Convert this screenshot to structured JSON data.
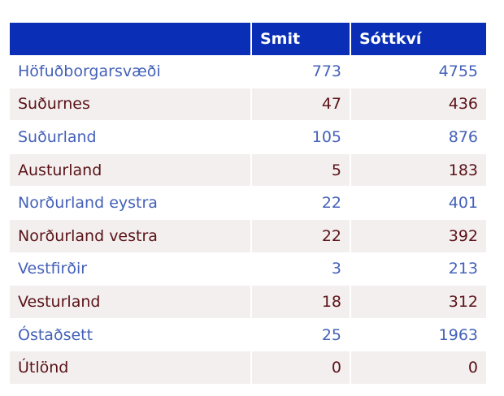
{
  "table": {
    "headers": [
      "",
      "Smit",
      "Sóttkví"
    ],
    "rows": [
      {
        "region": "Höfuðborgarsvæði",
        "smit": "773",
        "sottkvi": "4755"
      },
      {
        "region": "Suðurnes",
        "smit": "47",
        "sottkvi": "436"
      },
      {
        "region": "Suðurland",
        "smit": "105",
        "sottkvi": "876"
      },
      {
        "region": "Austurland",
        "smit": "5",
        "sottkvi": "183"
      },
      {
        "region": "Norðurland eystra",
        "smit": "22",
        "sottkvi": "401"
      },
      {
        "region": "Norðurland vestra",
        "smit": "22",
        "sottkvi": "392"
      },
      {
        "region": "Vestfirðir",
        "smit": "3",
        "sottkvi": "213"
      },
      {
        "region": "Vesturland",
        "smit": "18",
        "sottkvi": "312"
      },
      {
        "region": "Óstaðsett",
        "smit": "25",
        "sottkvi": "1963"
      },
      {
        "region": "Útlönd",
        "smit": "0",
        "sottkvi": "0"
      }
    ]
  },
  "colors": {
    "header_bg": "#0a2fb6",
    "odd_text": "#4461b8",
    "even_text": "#5a1216",
    "even_bg": "#f3efef"
  }
}
